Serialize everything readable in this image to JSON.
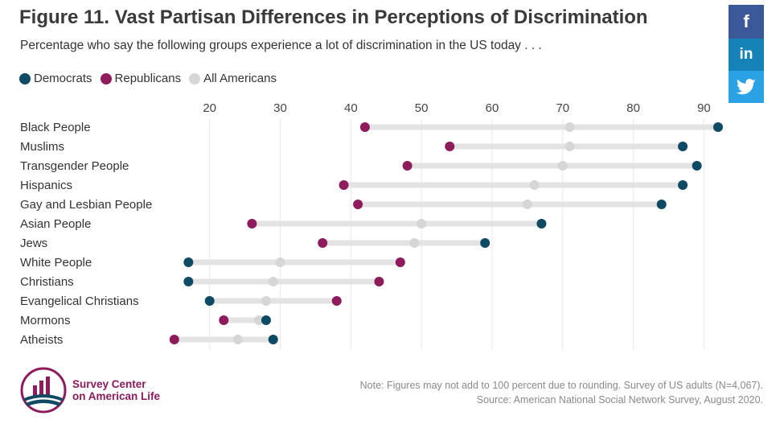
{
  "header": {
    "title": "Figure 11. Vast Partisan Differences in Perceptions of Discrimination",
    "subtitle": "Percentage who say the following groups experience a lot of discrimination in the US today . . ."
  },
  "social": {
    "facebook_label": "f",
    "linkedin_label": "in",
    "twitter_icon": "twitter-bird-icon"
  },
  "colors": {
    "democrats": "#0e4a63",
    "republicans": "#8e1b5c",
    "all_americans": "#d6d6d6",
    "bar": "#e3e3e3",
    "grid": "#e8e8e8",
    "facebook": "#3b5998",
    "linkedin": "#1683b8",
    "twitter": "#2ba1e6"
  },
  "chart_data": {
    "type": "dot-range",
    "title": "Figure 11. Vast Partisan Differences in Perceptions of Discrimination",
    "subtitle": "Percentage who say the following groups experience a lot of discrimination in the US today . . .",
    "legend_position": "top-left",
    "grid": true,
    "xlim": [
      14,
      92
    ],
    "xticks": [
      20,
      30,
      40,
      50,
      60,
      70,
      80,
      90
    ],
    "categories": [
      "Black People",
      "Muslims",
      "Transgender People",
      "Hispanics",
      "Gay and Lesbian People",
      "Asian People",
      "Jews",
      "White People",
      "Christians",
      "Evangelical Christians",
      "Mormons",
      "Atheists"
    ],
    "series": [
      {
        "name": "Democrats",
        "color": "#0e4a63",
        "values": [
          92,
          87,
          89,
          87,
          84,
          67,
          59,
          17,
          17,
          20,
          28,
          29
        ]
      },
      {
        "name": "Republicans",
        "color": "#8e1b5c",
        "values": [
          42,
          54,
          48,
          39,
          41,
          26,
          36,
          47,
          44,
          38,
          22,
          15
        ]
      },
      {
        "name": "All Americans",
        "color": "#d6d6d6",
        "values": [
          71,
          71,
          70,
          66,
          65,
          50,
          49,
          30,
          29,
          28,
          27,
          24
        ]
      }
    ]
  },
  "footer": {
    "logo_line1": "Survey Center",
    "logo_line2": "on American Life",
    "note": "Note: Figures may not add to 100 percent due to rounding. Survey of US adults (N=4,067).",
    "source": "Source: American National Social Network Survey, August 2020."
  }
}
